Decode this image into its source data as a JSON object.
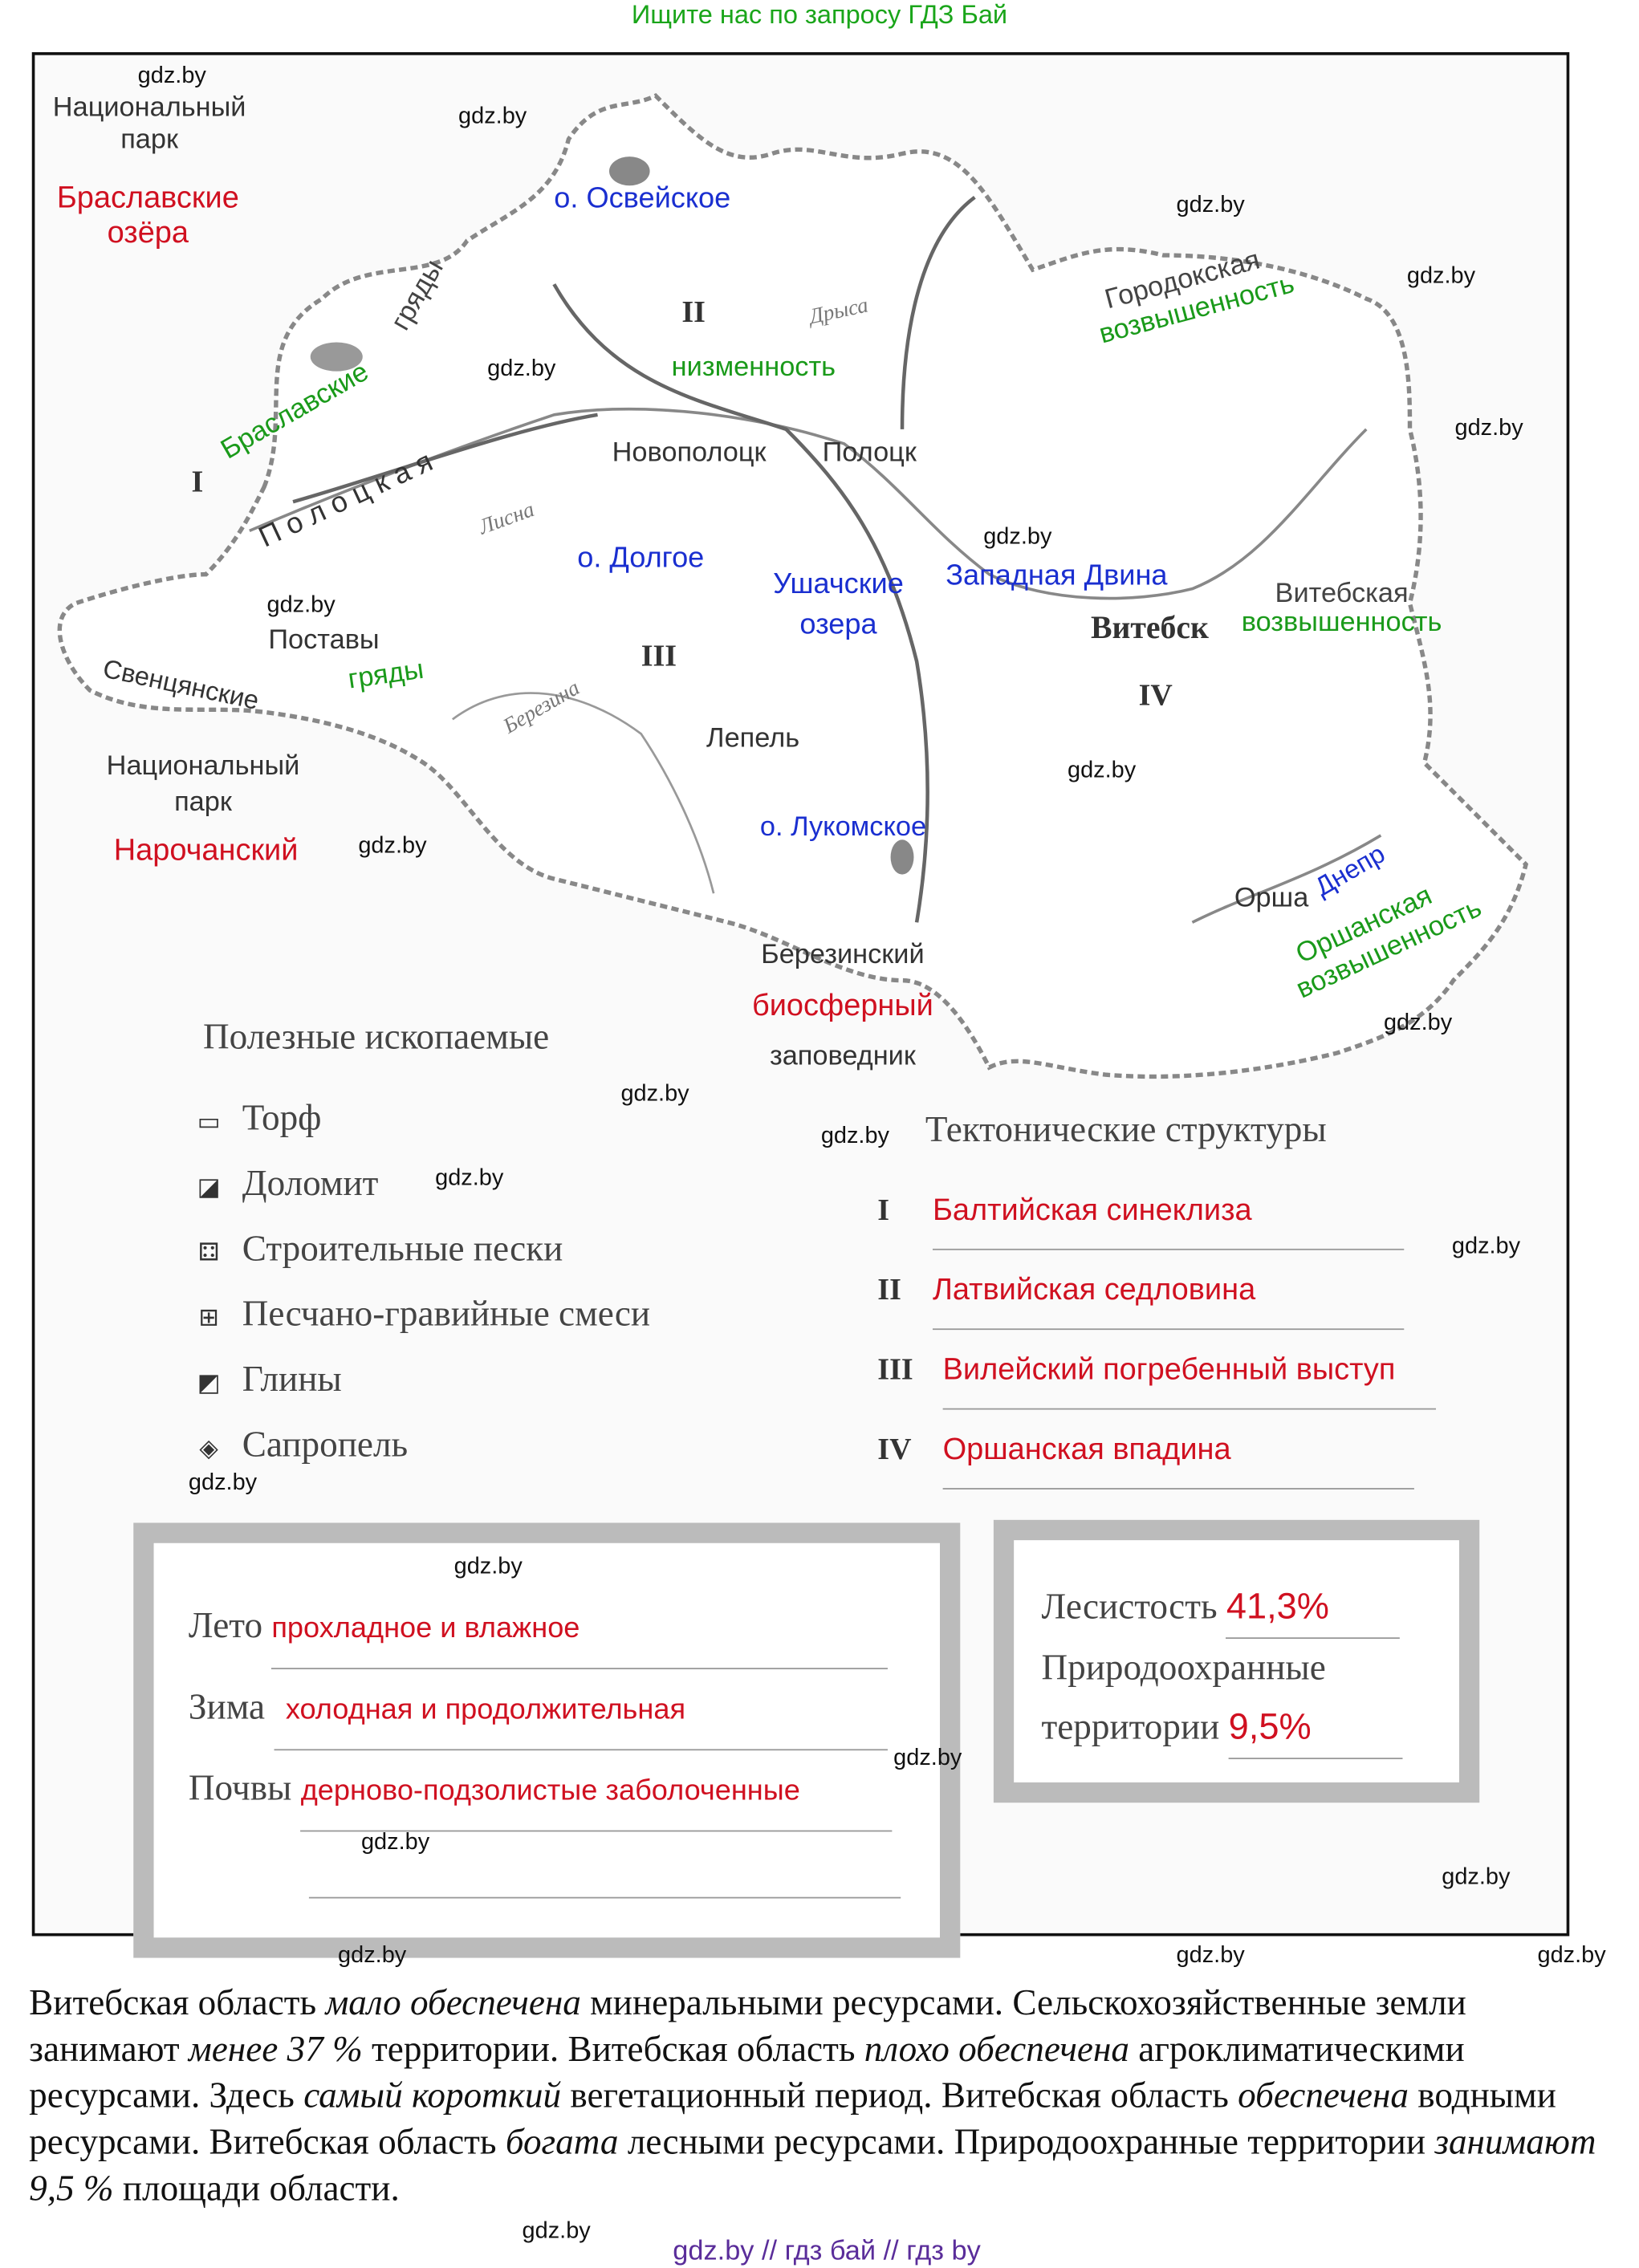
{
  "header": "Ищите нас по запросу ГДЗ Бай",
  "watermark": "gdz.by",
  "map": {
    "national_park_1": [
      "Национальный",
      "парк"
    ],
    "braslav_lakes": [
      "Браславские",
      "озёра"
    ],
    "osveiskoe": "о. Освейское",
    "lowland": "низменность",
    "drysa": "Дрыса",
    "gorodok_upland": [
      "Городокская",
      "возвышенность"
    ],
    "braslav_ridges": [
      "Браславские",
      "гряды"
    ],
    "polotsk_ridge": "П о л о ц к а я",
    "lisna": "Лисна",
    "novopolotsk": "Новополоцк",
    "polotsk": "Полоцк",
    "dolgoe": "о. Долгое",
    "ushach_lakes": [
      "Ушачские",
      "озера"
    ],
    "zapadnaya_dvina": "Западная Двина",
    "vitebsk": "Витебск",
    "vitebsk_upland": [
      "Витебская",
      "возвышенность"
    ],
    "postavy": "Поставы",
    "sventsyan_ridges": [
      "Свенцянские",
      "гряды"
    ],
    "berezina": "Березина",
    "lepel": "Лепель",
    "national_park_2": [
      "Национальный",
      "парк"
    ],
    "narochansky": "Нарочанский",
    "lukomskoe": "о. Лукомское",
    "orsha": "Орша",
    "dnepr": "Днепр",
    "orsha_upland": [
      "Оршанская",
      "возвышенность"
    ],
    "berezinsky": [
      "Березинский",
      "биосферный",
      "заповедник"
    ],
    "roman": [
      "I",
      "II",
      "III",
      "IV"
    ]
  },
  "minerals": {
    "title": "Полезные ископаемые",
    "items": [
      {
        "icon": "peat-icon",
        "label": "Торф"
      },
      {
        "icon": "dolomite-icon",
        "label": "Доломит"
      },
      {
        "icon": "building-sand-icon",
        "label": "Строительные пески"
      },
      {
        "icon": "sand-gravel-icon",
        "label": "Песчано-гравийные смеси"
      },
      {
        "icon": "clay-icon",
        "label": "Глины"
      },
      {
        "icon": "sapropel-icon",
        "label": "Сапропель"
      }
    ]
  },
  "tectonics": {
    "title": "Тектонические структуры",
    "items": [
      {
        "num": "I",
        "answer": "Балтийская синеклиза"
      },
      {
        "num": "II",
        "answer": "Латвийская седловина"
      },
      {
        "num": "III",
        "answer": "Вилейский погребенный выступ"
      },
      {
        "num": "IV",
        "answer": "Оршанская впадина"
      }
    ]
  },
  "climate": {
    "summer_label": "Лето",
    "summer": "прохладное и влажное",
    "winter_label": "Зима",
    "winter": "холодная и продолжительная",
    "soil_label": "Почвы",
    "soil": "дерново-подзолистые заболоченные"
  },
  "forest": {
    "forest_label": "Лесистость",
    "forest": "41,3%",
    "protected_label_1": "Природоохранные",
    "protected_label_2": "территории",
    "protected": "9,5%"
  },
  "paragraph": [
    {
      "t": "Витебская область "
    },
    {
      "i": "мало обеспечена"
    },
    {
      "t": " минеральными ресурсами. Сельскохозяйственные земли занимают "
    },
    {
      "i": "менее 37 %"
    },
    {
      "t": " территории. Витебская область "
    },
    {
      "i": "плохо обеспечена"
    },
    {
      "t": " агроклиматическими ресурсами. Здесь "
    },
    {
      "i": "самый короткий"
    },
    {
      "t": " вегетационный период. Витебская область "
    },
    {
      "i": "обеспечена"
    },
    {
      "t": " водными ресурсами. Витебская область "
    },
    {
      "i": "богата"
    },
    {
      "t": " лесными ресурсами. Природоохранные территории "
    },
    {
      "i": "занимают 9,5 %"
    },
    {
      "t": " площади области."
    }
  ],
  "footer": "gdz.by  //  гдз бай  //  гдз by",
  "colors": {
    "answer": "#d01020",
    "water": "#1a2fd0",
    "relief": "#1a9a1a",
    "header": "#1aa51a",
    "footer": "#5a2d9a"
  }
}
